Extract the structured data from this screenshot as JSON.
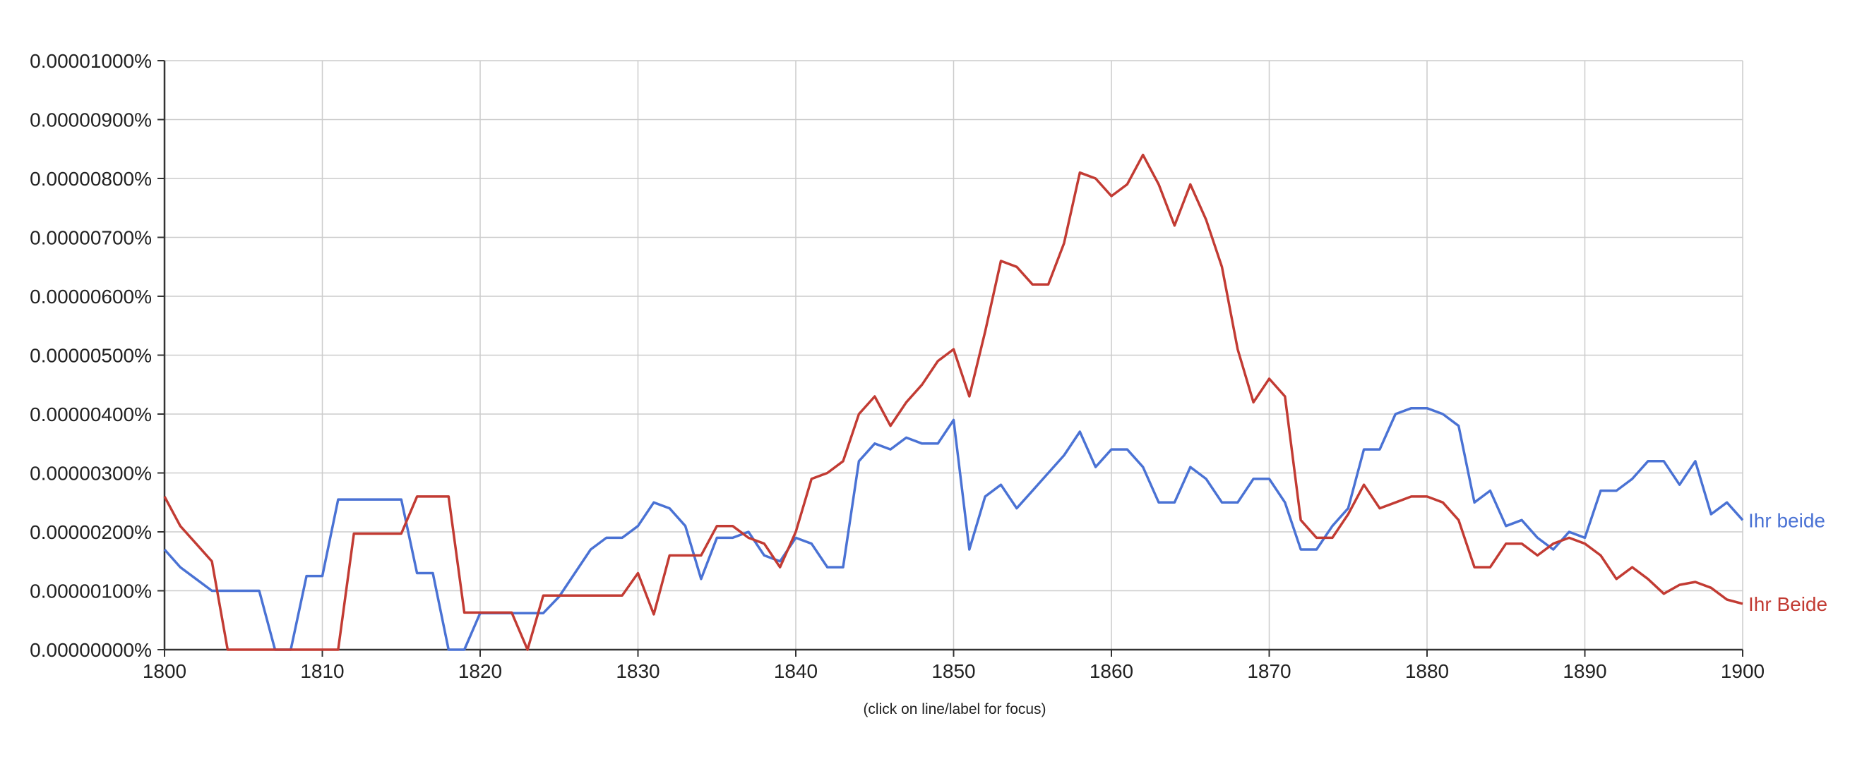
{
  "chart_data": {
    "type": "line",
    "title": "",
    "xlabel": "",
    "ylabel": "",
    "xlim": [
      1800,
      1900
    ],
    "ylim": [
      0,
      1e-05
    ],
    "x_ticks": [
      1800,
      1810,
      1820,
      1830,
      1840,
      1850,
      1860,
      1870,
      1880,
      1890,
      1900
    ],
    "y_ticks": [
      {
        "value": 0.0,
        "label": "0.00000000%"
      },
      {
        "value": 1e-06,
        "label": "0.00000100%"
      },
      {
        "value": 2e-06,
        "label": "0.00000200%"
      },
      {
        "value": 3e-06,
        "label": "0.00000300%"
      },
      {
        "value": 4e-06,
        "label": "0.00000400%"
      },
      {
        "value": 5e-06,
        "label": "0.00000500%"
      },
      {
        "value": 6e-06,
        "label": "0.00000600%"
      },
      {
        "value": 7e-06,
        "label": "0.00000700%"
      },
      {
        "value": 8e-06,
        "label": "0.00000800%"
      },
      {
        "value": 9e-06,
        "label": "0.00000900%"
      },
      {
        "value": 1e-05,
        "label": "0.00001000%"
      }
    ],
    "grid": true,
    "legend": "right-end-labels",
    "note": "(click on line/label for focus)",
    "x": [
      1800,
      1801,
      1802,
      1803,
      1804,
      1805,
      1806,
      1807,
      1808,
      1809,
      1810,
      1811,
      1812,
      1813,
      1814,
      1815,
      1816,
      1817,
      1818,
      1819,
      1820,
      1821,
      1822,
      1823,
      1824,
      1825,
      1826,
      1827,
      1828,
      1829,
      1830,
      1831,
      1832,
      1833,
      1834,
      1835,
      1836,
      1837,
      1838,
      1839,
      1840,
      1841,
      1842,
      1843,
      1844,
      1845,
      1846,
      1847,
      1848,
      1849,
      1850,
      1851,
      1852,
      1853,
      1854,
      1855,
      1856,
      1857,
      1858,
      1859,
      1860,
      1861,
      1862,
      1863,
      1864,
      1865,
      1866,
      1867,
      1868,
      1869,
      1870,
      1871,
      1872,
      1873,
      1874,
      1875,
      1876,
      1877,
      1878,
      1879,
      1880,
      1881,
      1882,
      1883,
      1884,
      1885,
      1886,
      1887,
      1888,
      1889,
      1890,
      1891,
      1892,
      1893,
      1894,
      1895,
      1896,
      1897,
      1898,
      1899,
      1900
    ],
    "series": [
      {
        "name": "Ihr beide",
        "color": "#4a72d4",
        "values": [
          1.7e-06,
          1.4e-06,
          1.2e-06,
          1e-06,
          1e-06,
          1e-06,
          1e-06,
          0.0,
          0.0,
          1.25e-06,
          1.25e-06,
          2.55e-06,
          2.55e-06,
          2.55e-06,
          2.55e-06,
          2.55e-06,
          1.3e-06,
          1.3e-06,
          0.0,
          0.0,
          6.2e-07,
          6.2e-07,
          6.2e-07,
          6.2e-07,
          6.2e-07,
          9e-07,
          1.3e-06,
          1.7e-06,
          1.9e-06,
          1.9e-06,
          2.1e-06,
          2.5e-06,
          2.4e-06,
          2.1e-06,
          1.2e-06,
          1.9e-06,
          1.9e-06,
          2e-06,
          1.6e-06,
          1.5e-06,
          1.9e-06,
          1.8e-06,
          1.4e-06,
          1.4e-06,
          3.2e-06,
          3.5e-06,
          3.4e-06,
          3.6e-06,
          3.5e-06,
          3.5e-06,
          3.9e-06,
          1.7e-06,
          2.6e-06,
          2.8e-06,
          2.4e-06,
          2.7e-06,
          3e-06,
          3.3e-06,
          3.7e-06,
          3.1e-06,
          3.4e-06,
          3.4e-06,
          3.1e-06,
          2.5e-06,
          2.5e-06,
          3.1e-06,
          2.9e-06,
          2.5e-06,
          2.5e-06,
          2.9e-06,
          2.9e-06,
          2.5e-06,
          1.7e-06,
          1.7e-06,
          2.1e-06,
          2.4e-06,
          3.4e-06,
          3.4e-06,
          4e-06,
          4.1e-06,
          4.1e-06,
          4e-06,
          3.8e-06,
          2.5e-06,
          2.7e-06,
          2.1e-06,
          2.2e-06,
          1.9e-06,
          1.7e-06,
          2e-06,
          1.9e-06,
          2.7e-06,
          2.7e-06,
          2.9e-06,
          3.2e-06,
          3.2e-06,
          2.8e-06,
          3.2e-06,
          2.3e-06,
          2.5e-06,
          2.2e-06
        ]
      },
      {
        "name": "Ihr Beide",
        "color": "#c23b33",
        "values": [
          2.6e-06,
          2.1e-06,
          1.8e-06,
          1.5e-06,
          0.0,
          0.0,
          0.0,
          0.0,
          0.0,
          0.0,
          0.0,
          0.0,
          1.97e-06,
          1.97e-06,
          1.97e-06,
          1.97e-06,
          2.6e-06,
          2.6e-06,
          2.6e-06,
          6.3e-07,
          6.3e-07,
          6.3e-07,
          6.3e-07,
          0.0,
          9.2e-07,
          9.2e-07,
          9.2e-07,
          9.2e-07,
          9.2e-07,
          9.2e-07,
          1.3e-06,
          6e-07,
          1.6e-06,
          1.6e-06,
          1.6e-06,
          2.1e-06,
          2.1e-06,
          1.9e-06,
          1.8e-06,
          1.4e-06,
          2e-06,
          2.9e-06,
          3e-06,
          3.2e-06,
          4e-06,
          4.3e-06,
          3.8e-06,
          4.2e-06,
          4.5e-06,
          4.9e-06,
          5.1e-06,
          4.3e-06,
          5.4e-06,
          6.6e-06,
          6.5e-06,
          6.2e-06,
          6.2e-06,
          6.9e-06,
          8.1e-06,
          8e-06,
          7.7e-06,
          7.9e-06,
          8.4e-06,
          7.9e-06,
          7.2e-06,
          7.9e-06,
          7.3e-06,
          6.5e-06,
          5.1e-06,
          4.2e-06,
          4.6e-06,
          4.3e-06,
          2.2e-06,
          1.9e-06,
          1.9e-06,
          2.3e-06,
          2.8e-06,
          2.4e-06,
          2.5e-06,
          2.6e-06,
          2.6e-06,
          2.5e-06,
          2.2e-06,
          1.4e-06,
          1.4e-06,
          1.8e-06,
          1.8e-06,
          1.6e-06,
          1.8e-06,
          1.9e-06,
          1.8e-06,
          1.6e-06,
          1.2e-06,
          1.4e-06,
          1.2e-06,
          9.5e-07,
          1.1e-06,
          1.15e-06,
          1.05e-06,
          8.5e-07,
          7.8e-07
        ]
      }
    ]
  }
}
